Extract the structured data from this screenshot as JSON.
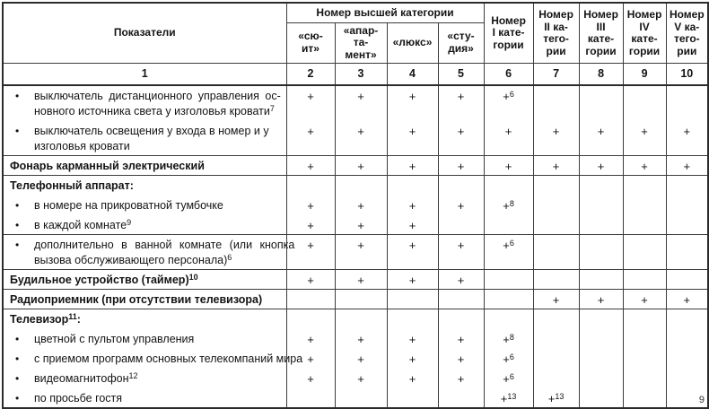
{
  "table": {
    "col1_header": "Показатели",
    "group_header": "Номер высшей категории",
    "cat_headers": [
      "«сю-\nит»",
      "«апар-\nта-\nмент»",
      "«люкс»",
      "«сту-\nдия»"
    ],
    "num_headers": [
      "Номер\nI кате-\nгории",
      "Номер\nII ка-\nтего-\nрии",
      "Номер\nIII\nкате-\nгории",
      "Номер\nIV\nкате-\nгории",
      "Номер\nV ка-\nтего-\nрии"
    ],
    "col_numbers": [
      "1",
      "2",
      "3",
      "4",
      "5",
      "6",
      "7",
      "8",
      "9",
      "10"
    ],
    "blocks": [
      {
        "items": [
          {
            "bullet": true,
            "bold": false,
            "lines": [
              {
                "segs": [
                  {
                    "t": "выключатель дистанционного управления ос-"
                  }
                ],
                "j": 3
              },
              {
                "segs": [
                  {
                    "t": "новного источника света у изголовья кровати"
                  },
                  {
                    "s": "7"
                  }
                ]
              }
            ],
            "marks": [
              "+",
              "+",
              "+",
              "+",
              "+6",
              "",
              "",
              "",
              ""
            ]
          },
          {
            "bullet": true,
            "bold": false,
            "lines": [
              {
                "segs": [
                  {
                    "t": "выключатель освещения у входа в номер и у"
                  }
                ]
              },
              {
                "segs": [
                  {
                    "t": "изголовья кровати"
                  }
                ]
              }
            ],
            "marks": [
              "+",
              "+",
              "+",
              "+",
              "+",
              "+",
              "+",
              "+",
              "+"
            ]
          }
        ]
      },
      {
        "items": [
          {
            "bullet": false,
            "bold": true,
            "lines": [
              {
                "segs": [
                  {
                    "t": "Фонарь карманный электрический"
                  }
                ]
              }
            ],
            "marks": [
              "+",
              "+",
              "+",
              "+",
              "+",
              "+",
              "+",
              "+",
              "+"
            ]
          }
        ]
      },
      {
        "items": [
          {
            "bullet": false,
            "bold": true,
            "lines": [
              {
                "segs": [
                  {
                    "t": "Телефонный аппарат:"
                  }
                ]
              }
            ],
            "marks": [
              "",
              "",
              "",
              "",
              "",
              "",
              "",
              "",
              ""
            ]
          },
          {
            "bullet": true,
            "bold": false,
            "lines": [
              {
                "segs": [
                  {
                    "t": "в номере на прикроватной тумбочке"
                  }
                ]
              }
            ],
            "marks": [
              "+",
              "+",
              "+",
              "+",
              "+8",
              "",
              "",
              "",
              ""
            ]
          },
          {
            "bullet": true,
            "bold": false,
            "lines": [
              {
                "segs": [
                  {
                    "t": "в каждой комнате"
                  },
                  {
                    "s": "9"
                  }
                ]
              }
            ],
            "marks": [
              "+",
              "+",
              "+",
              "",
              "",
              "",
              "",
              "",
              ""
            ]
          }
        ]
      },
      {
        "items": [
          {
            "bullet": true,
            "bold": false,
            "lines": [
              {
                "segs": [
                  {
                    "t": "дополнительно в ванной комнате (или кнопка"
                  }
                ],
                "j": 5
              },
              {
                "segs": [
                  {
                    "t": "вызова обслуживающего персонала)"
                  },
                  {
                    "s": "6"
                  }
                ]
              }
            ],
            "marks": [
              "+",
              "+",
              "+",
              "+",
              "+6",
              "",
              "",
              "",
              ""
            ]
          }
        ]
      },
      {
        "items": [
          {
            "bullet": false,
            "bold": true,
            "lines": [
              {
                "segs": [
                  {
                    "t": "Будильное устройство (таймер)"
                  },
                  {
                    "s": "10"
                  }
                ]
              }
            ],
            "marks": [
              "+",
              "+",
              "+",
              "+",
              "",
              "",
              "",
              "",
              ""
            ]
          }
        ]
      },
      {
        "items": [
          {
            "bullet": false,
            "bold": true,
            "lines": [
              {
                "segs": [
                  {
                    "t": "Радиоприемник (при отсутствии телевизора)"
                  }
                ]
              }
            ],
            "marks": [
              "",
              "",
              "",
              "",
              "",
              "+",
              "+",
              "+",
              "+"
            ]
          }
        ]
      },
      {
        "items": [
          {
            "bullet": false,
            "bold": true,
            "lines": [
              {
                "segs": [
                  {
                    "t": "Телевизор"
                  },
                  {
                    "s": "11"
                  },
                  {
                    "t": ":"
                  }
                ]
              }
            ],
            "marks": [
              "",
              "",
              "",
              "",
              "",
              "",
              "",
              "",
              ""
            ]
          },
          {
            "bullet": true,
            "bold": false,
            "lines": [
              {
                "segs": [
                  {
                    "t": "цветной с пультом управления"
                  }
                ]
              }
            ],
            "marks": [
              "+",
              "+",
              "+",
              "+",
              "+8",
              "",
              "",
              "",
              ""
            ]
          },
          {
            "bullet": true,
            "bold": false,
            "lines": [
              {
                "segs": [
                  {
                    "t": "с приемом программ основных телекомпаний мира"
                  }
                ]
              }
            ],
            "marks": [
              "+",
              "+",
              "+",
              "+",
              "+6",
              "",
              "",
              "",
              ""
            ]
          },
          {
            "bullet": true,
            "bold": false,
            "lines": [
              {
                "segs": [
                  {
                    "t": "видеомагнитофон"
                  },
                  {
                    "s": "12"
                  }
                ]
              }
            ],
            "marks": [
              "+",
              "+",
              "+",
              "+",
              "+6",
              "",
              "",
              "",
              ""
            ]
          },
          {
            "bullet": true,
            "bold": false,
            "lines": [
              {
                "segs": [
                  {
                    "t": "по просьбе гостя"
                  }
                ]
              }
            ],
            "marks": [
              "",
              "",
              "",
              "",
              "+13",
              "+13",
              "",
              "",
              ""
            ]
          }
        ]
      }
    ]
  },
  "artifact": "9",
  "colors": {
    "border": "#3c3c3c",
    "outer_border": "#2b2b2b",
    "text": "#141414",
    "background": "#ffffff"
  }
}
